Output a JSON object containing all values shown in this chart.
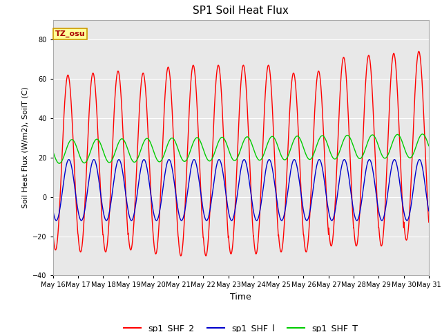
{
  "title": "SP1 Soil Heat Flux",
  "xlabel": "Time",
  "ylabel": "Soil Heat Flux (W/m2), SoilT (C)",
  "ylim": [
    -40,
    90
  ],
  "yticks": [
    -40,
    -20,
    0,
    20,
    40,
    60,
    80
  ],
  "n_days": 15,
  "bg_color": "#e8e8e8",
  "fig_color": "#ffffff",
  "shf2_color": "#ff0000",
  "shf1_color": "#0000cc",
  "shft_color": "#00cc00",
  "tz_label": "TZ_osu",
  "tz_box_bg": "#ffff99",
  "tz_box_edge": "#cc9900",
  "legend_labels": [
    "sp1_SHF_2",
    "sp1_SHF_l",
    "sp1_SHF_T"
  ],
  "tick_labels": [
    "May 16",
    "May 17",
    "May 18",
    "May 19",
    "May 20",
    "May 21",
    "May 22",
    "May 23",
    "May 24",
    "May 25",
    "May 26",
    "May 27",
    "May 28",
    "May 29",
    "May 30",
    "May 31"
  ]
}
